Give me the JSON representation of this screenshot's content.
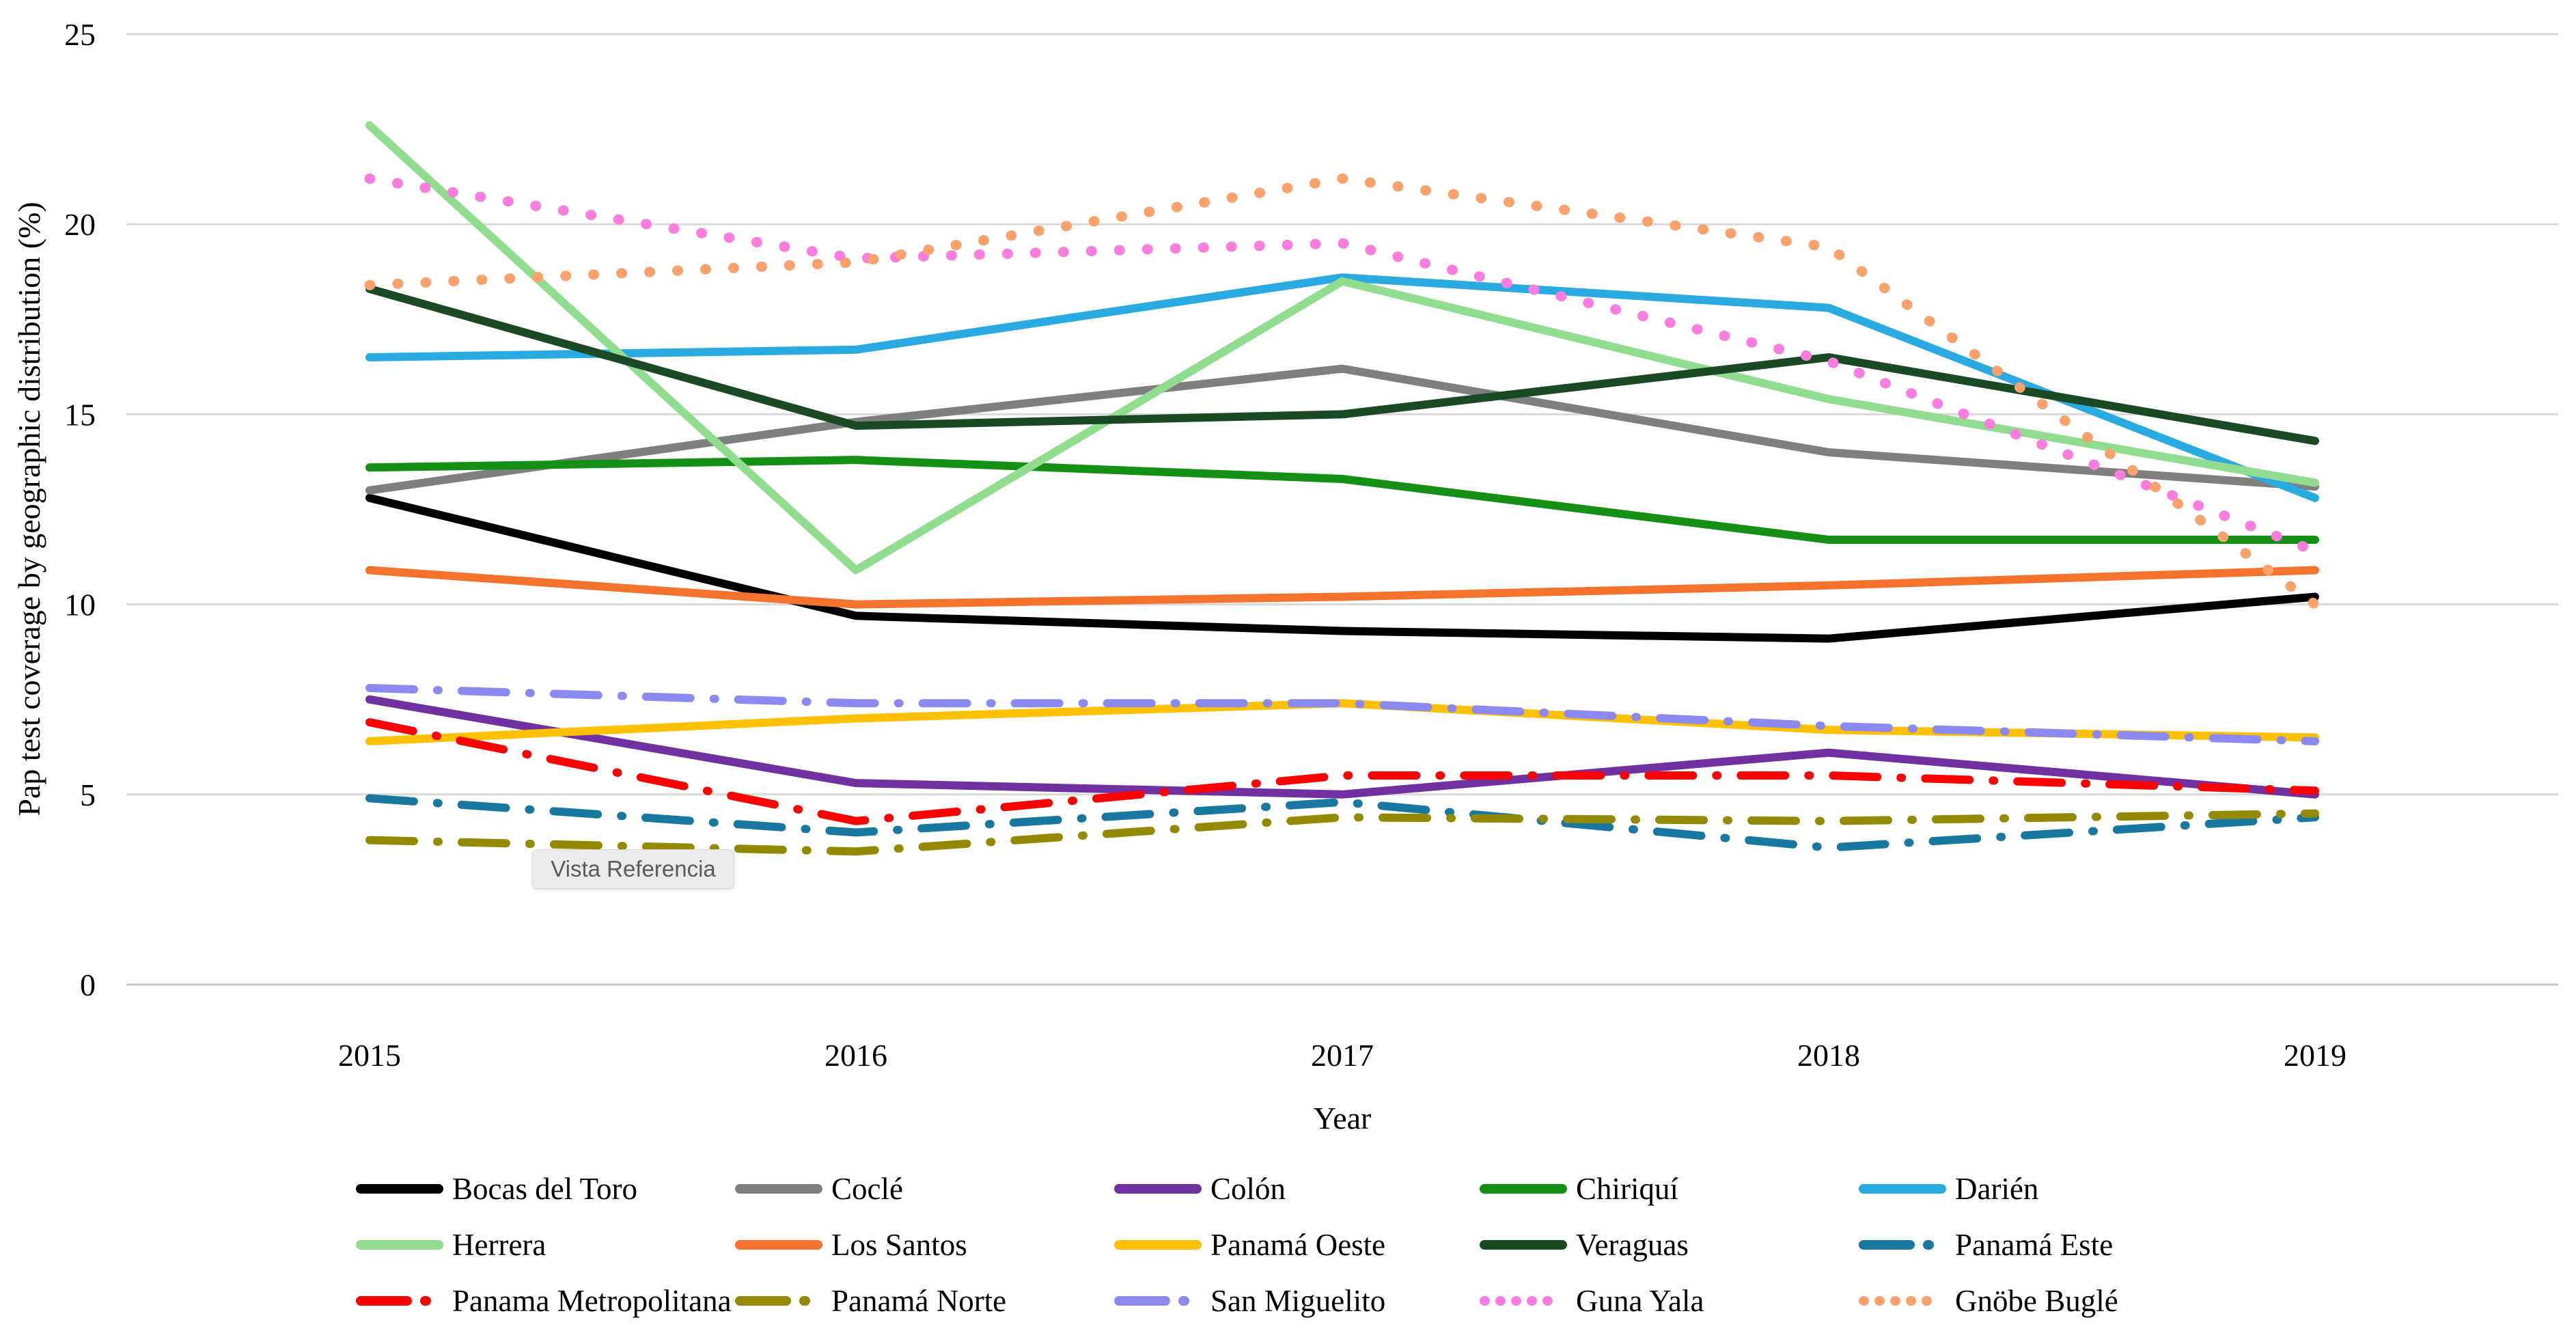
{
  "tooltip": {
    "text": "Vista Referencia"
  },
  "chart_data": {
    "type": "line",
    "title": "",
    "xlabel": "Year",
    "ylabel": "Pap test coverage by geographic distribution (%)",
    "x_categories": [
      "2015",
      "2016",
      "2017",
      "2018",
      "2019"
    ],
    "ylim": [
      0,
      25
    ],
    "yticks": [
      0,
      5,
      10,
      15,
      20,
      25
    ],
    "grid": "horizontal",
    "legend_position": "bottom",
    "series": [
      {
        "id": "bocas-del-toro",
        "name": "Bocas del Toro",
        "color": "#000000",
        "line_style": "solid",
        "values": [
          12.8,
          9.7,
          9.3,
          9.1,
          10.2
        ]
      },
      {
        "id": "cocle",
        "name": "Coclé",
        "color": "#7f7f7f",
        "line_style": "solid",
        "values": [
          13.0,
          14.8,
          16.2,
          14.0,
          13.1
        ]
      },
      {
        "id": "colon",
        "name": "Colón",
        "color": "#7030a0",
        "line_style": "solid",
        "values": [
          7.5,
          5.3,
          5.0,
          6.1,
          5.0
        ]
      },
      {
        "id": "chiriqui",
        "name": "Chiriquí",
        "color": "#149114",
        "line_style": "solid",
        "values": [
          13.6,
          13.8,
          13.3,
          11.7,
          11.7
        ]
      },
      {
        "id": "darien",
        "name": "Darién",
        "color": "#29abe2",
        "line_style": "solid",
        "values": [
          16.5,
          16.7,
          18.6,
          17.8,
          12.8
        ]
      },
      {
        "id": "herrera",
        "name": "Herrera",
        "color": "#90dd90",
        "line_style": "solid",
        "values": [
          22.6,
          10.9,
          18.5,
          15.4,
          13.2
        ]
      },
      {
        "id": "los-santos",
        "name": "Los Santos",
        "color": "#f4722b",
        "line_style": "solid",
        "values": [
          10.9,
          10.0,
          10.2,
          10.5,
          10.9
        ]
      },
      {
        "id": "panama-oeste",
        "name": "Panamá Oeste",
        "color": "#ffc000",
        "line_style": "solid",
        "values": [
          6.4,
          7.0,
          7.4,
          6.7,
          6.5
        ]
      },
      {
        "id": "veraguas",
        "name": "Veraguas",
        "color": "#1a4a25",
        "line_style": "solid",
        "values": [
          18.3,
          14.7,
          15.0,
          16.5,
          14.3
        ]
      },
      {
        "id": "panama-este",
        "name": "Panamá Este",
        "color": "#1878a0",
        "line_style": "dash-dot",
        "values": [
          4.9,
          4.0,
          4.8,
          3.6,
          4.4
        ]
      },
      {
        "id": "panama-metropolitana",
        "name": "Panama Metropolitana",
        "color": "#fe0000",
        "line_style": "dash-dot",
        "values": [
          6.9,
          4.3,
          5.5,
          5.5,
          5.1
        ]
      },
      {
        "id": "panama-norte",
        "name": "Panamá Norte",
        "color": "#938a00",
        "line_style": "dash-dot",
        "values": [
          3.8,
          3.5,
          4.4,
          4.3,
          4.5
        ]
      },
      {
        "id": "san-miguelito",
        "name": "San Miguelito",
        "color": "#8a8af2",
        "line_style": "dash-dot",
        "values": [
          7.8,
          7.4,
          7.4,
          6.8,
          6.4
        ]
      },
      {
        "id": "guna-yala",
        "name": "Guna Yala",
        "color": "#fb7dde",
        "line_style": "dotted",
        "values": [
          21.2,
          19.1,
          19.5,
          16.4,
          11.4
        ]
      },
      {
        "id": "gnobe-bugle",
        "name": "Gnöbe Buglé",
        "color": "#fba26c",
        "line_style": "dotted",
        "values": [
          18.4,
          19.0,
          21.2,
          19.4,
          10.0
        ]
      }
    ]
  }
}
